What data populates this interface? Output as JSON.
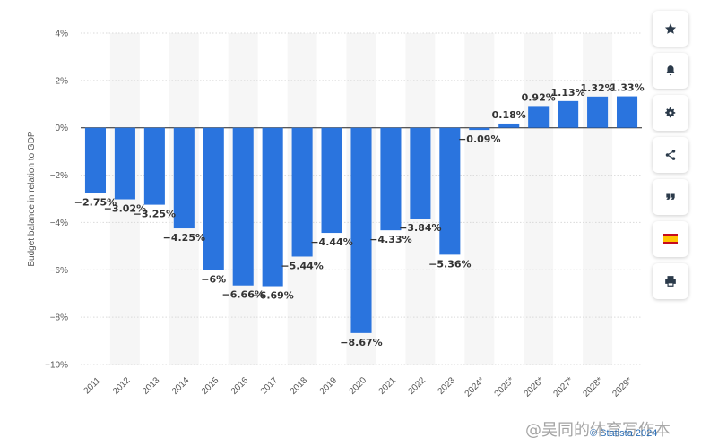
{
  "chart_data": {
    "type": "bar",
    "ylabel": "Budget balance in relation to GDP",
    "ylim": [
      -10,
      4
    ],
    "yticks": [
      "4%",
      "2%",
      "0%",
      "-2%",
      "-4%",
      "-6%",
      "-8%",
      "-10%"
    ],
    "grid": true,
    "categories": [
      "2011",
      "2012",
      "2013",
      "2014",
      "2015",
      "2016",
      "2017",
      "2018",
      "2019",
      "2020",
      "2021",
      "2022",
      "2023",
      "2024*",
      "2025*",
      "2026*",
      "2027*",
      "2028*",
      "2029*"
    ],
    "values": [
      -2.75,
      -3.02,
      -3.25,
      -4.25,
      -6,
      -6.66,
      -6.69,
      -5.44,
      -4.44,
      -8.67,
      -4.33,
      -3.84,
      -5.36,
      -0.09,
      0.18,
      0.92,
      1.13,
      1.32,
      1.33
    ],
    "labels": [
      "-2.75%",
      "-3.02%",
      "-3.25%",
      "-4.25%",
      "-6%",
      "-6.66%",
      "-6.69%",
      "-5.44%",
      "-4.44%",
      "-8.67%",
      "-4.33%",
      "-3.84%",
      "-5.36%",
      "-0.09%",
      "0.18%",
      "0.92%",
      "1.13%",
      "1.32%",
      "1.33%"
    ],
    "bar_color": "#2a74de"
  },
  "sidebar": {
    "buttons": [
      {
        "name": "favorite",
        "icon": "star-icon"
      },
      {
        "name": "notification",
        "icon": "bell-icon"
      },
      {
        "name": "settings",
        "icon": "gear-icon"
      },
      {
        "name": "share",
        "icon": "share-icon"
      },
      {
        "name": "cite",
        "icon": "quote-icon"
      },
      {
        "name": "language",
        "icon": "spain-flag-icon"
      },
      {
        "name": "print",
        "icon": "printer-icon"
      }
    ]
  },
  "watermark": "@吴同的体育写作本",
  "credit": "© Statista 2024"
}
